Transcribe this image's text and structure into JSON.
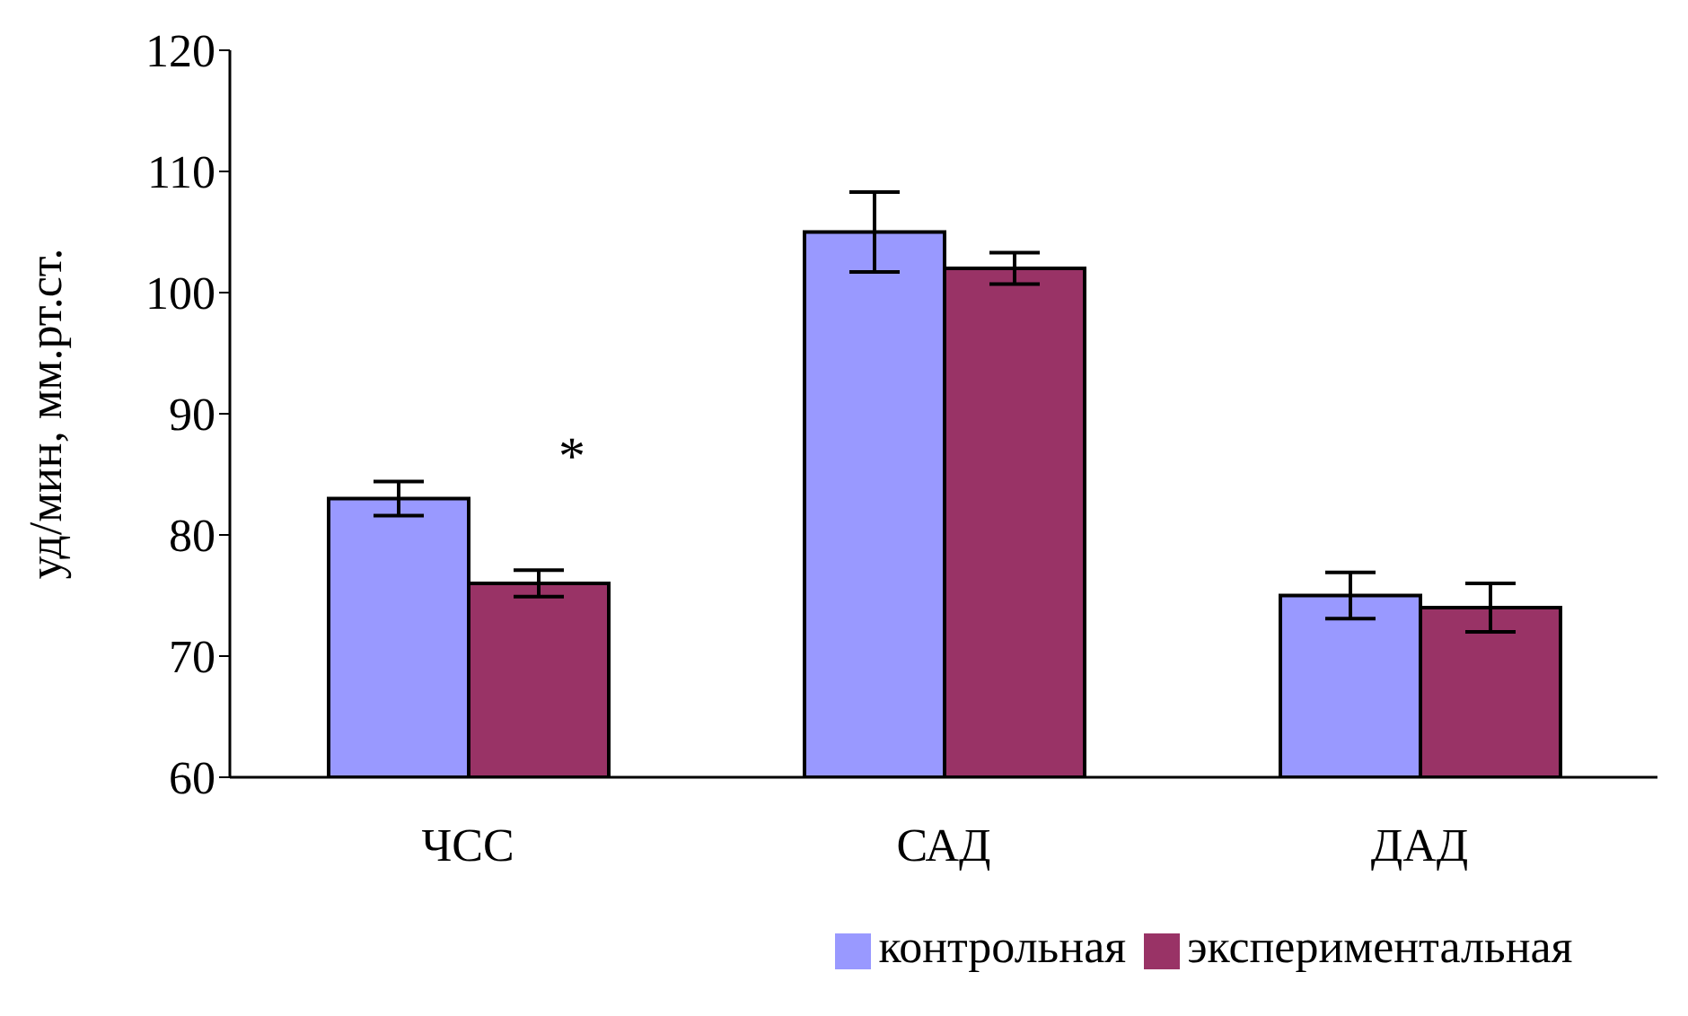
{
  "chart_data": {
    "type": "bar",
    "ylabel": "уд/мин, мм.рт.ст.",
    "categories": [
      "ЧСС",
      "САД",
      "ДАД"
    ],
    "series": [
      {
        "name": "контрольная",
        "color": "#9999ff",
        "values": [
          83,
          105,
          75
        ],
        "errors": [
          1.4,
          3.3,
          1.9
        ]
      },
      {
        "name": "экспериментальная",
        "color": "#993366",
        "values": [
          76,
          102,
          74
        ],
        "errors": [
          1.1,
          1.3,
          2.0
        ]
      }
    ],
    "ylim": [
      60,
      120
    ],
    "yticks": [
      60,
      70,
      80,
      90,
      100,
      110,
      120
    ],
    "grid": false,
    "legend": "bottom",
    "annotations": [
      "*"
    ]
  }
}
